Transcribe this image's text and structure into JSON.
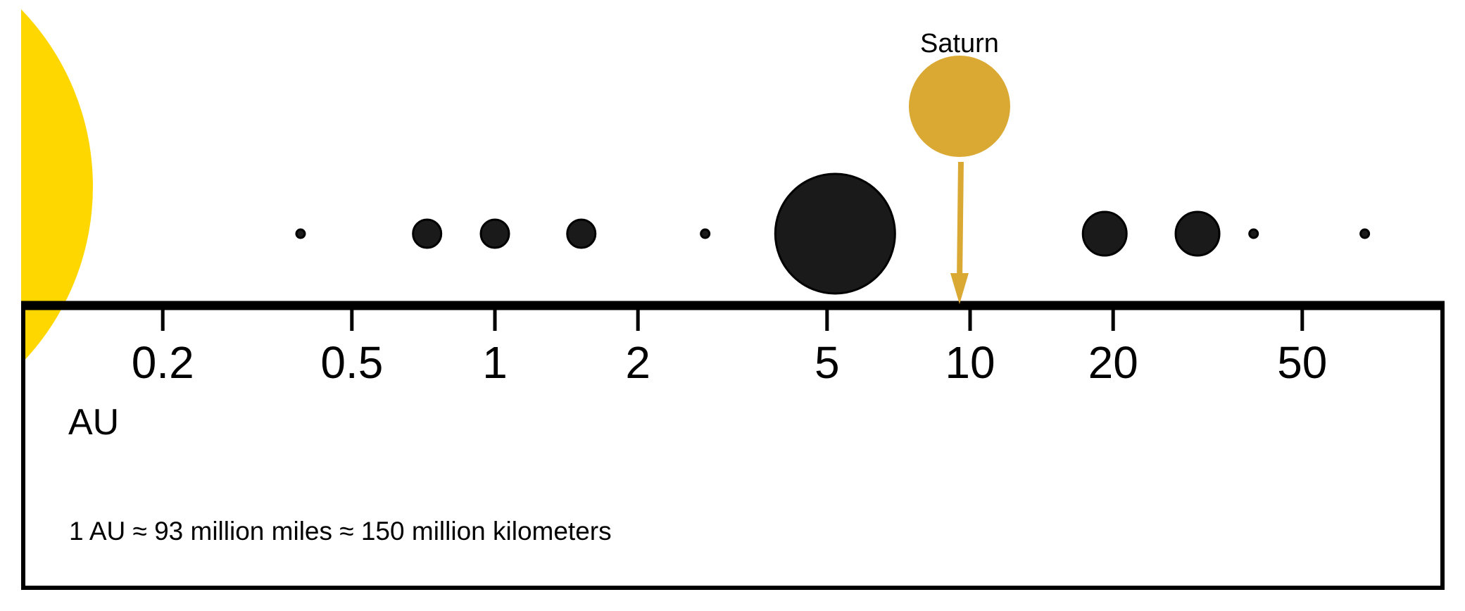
{
  "diagram": {
    "axis": {
      "scale": "log",
      "unit_label": "AU",
      "ticks": [
        {
          "value": 0.2,
          "label": "0.2"
        },
        {
          "value": 0.5,
          "label": "0.5"
        },
        {
          "value": 1,
          "label": "1"
        },
        {
          "value": 2,
          "label": "2"
        },
        {
          "value": 5,
          "label": "5"
        },
        {
          "value": 10,
          "label": "10"
        },
        {
          "value": 20,
          "label": "20"
        },
        {
          "value": 50,
          "label": "50"
        }
      ]
    },
    "note": "1 AU ≈ 93 million miles ≈ 150 million kilometers",
    "sun": {
      "color": "#FFD700"
    },
    "bodies": [
      {
        "distance_au": 0.39,
        "size": "tiny"
      },
      {
        "distance_au": 0.72,
        "size": "small"
      },
      {
        "distance_au": 1.0,
        "size": "small"
      },
      {
        "distance_au": 1.52,
        "size": "small"
      },
      {
        "distance_au": 2.77,
        "size": "tiny"
      },
      {
        "distance_au": 5.2,
        "size": "large"
      },
      {
        "distance_au": 19.2,
        "size": "medium"
      },
      {
        "distance_au": 30.1,
        "size": "medium"
      },
      {
        "distance_au": 39.5,
        "size": "tiny"
      },
      {
        "distance_au": 67.7,
        "size": "tiny"
      }
    ],
    "highlight": {
      "label": "Saturn",
      "distance_au": 9.5,
      "color": "#DAA933"
    },
    "body_color": "#1a1a1a"
  }
}
